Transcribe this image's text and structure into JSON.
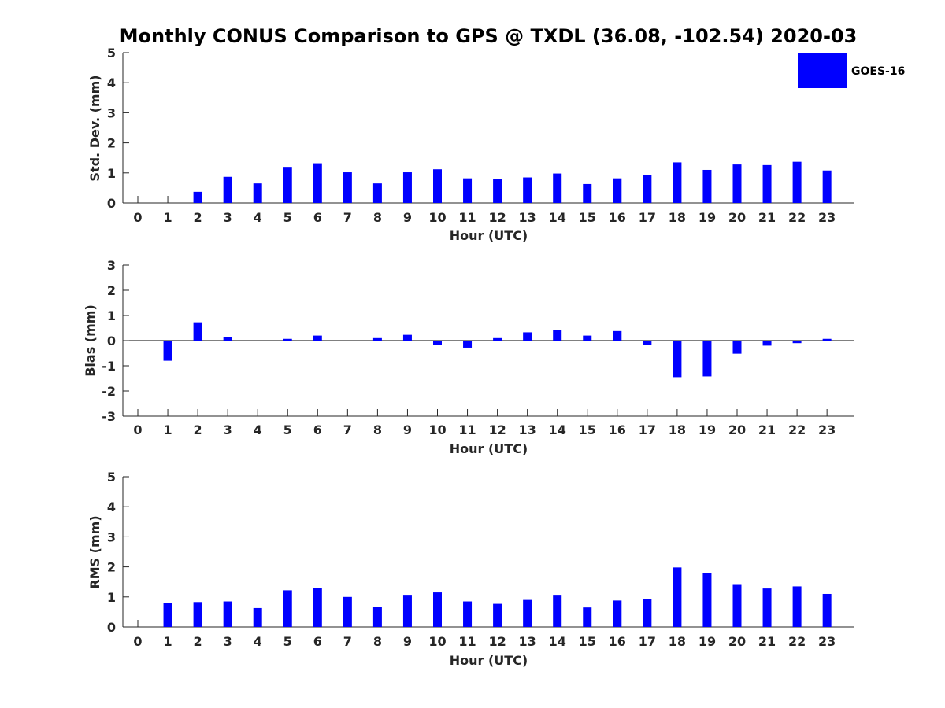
{
  "chart_data": {
    "title": "Monthly CONUS Comparison to GPS @ TXDL (36.08, -102.54) 2020-03",
    "series_color": "#0000ff",
    "legend": {
      "label": "GOES-16",
      "placement": "top-right"
    },
    "categories": [
      0,
      1,
      2,
      3,
      4,
      5,
      6,
      7,
      8,
      9,
      10,
      11,
      12,
      13,
      14,
      15,
      16,
      17,
      18,
      19,
      20,
      21,
      22,
      23
    ],
    "panels": [
      {
        "type": "bar",
        "ylabel": "Std. Dev. (mm)",
        "xlabel": "Hour (UTC)",
        "ylim": [
          0,
          5
        ],
        "yticks": [
          0,
          1,
          2,
          3,
          4,
          5
        ],
        "series": [
          {
            "name": "GOES-16",
            "values": [
              0,
              0,
              0.37,
              0.87,
              0.65,
              1.2,
              1.32,
              1.02,
              0.65,
              1.02,
              1.12,
              0.82,
              0.8,
              0.85,
              0.98,
              0.63,
              0.82,
              0.93,
              1.35,
              1.1,
              1.28,
              1.26,
              1.37,
              1.08
            ]
          }
        ]
      },
      {
        "type": "bar",
        "ylabel": "Bias (mm)",
        "xlabel": "Hour (UTC)",
        "ylim": [
          -3,
          3
        ],
        "yticks": [
          -3,
          -2,
          -1,
          0,
          1,
          2,
          3
        ],
        "series": [
          {
            "name": "GOES-16",
            "values": [
              0,
              -0.8,
              0.73,
              0.13,
              0,
              0.07,
              0.2,
              0,
              0.1,
              0.23,
              -0.17,
              -0.28,
              0.1,
              0.33,
              0.42,
              0.2,
              0.38,
              -0.17,
              -1.45,
              -1.42,
              -0.52,
              -0.2,
              -0.1,
              0.07
            ]
          }
        ]
      },
      {
        "type": "bar",
        "ylabel": "RMS (mm)",
        "xlabel": "Hour (UTC)",
        "ylim": [
          0,
          5
        ],
        "yticks": [
          0,
          1,
          2,
          3,
          4,
          5
        ],
        "series": [
          {
            "name": "GOES-16",
            "values": [
              0,
              0.8,
              0.83,
              0.85,
              0.63,
              1.22,
              1.3,
              1.0,
              0.67,
              1.07,
              1.15,
              0.85,
              0.77,
              0.9,
              1.07,
              0.65,
              0.88,
              0.93,
              1.98,
              1.8,
              1.4,
              1.28,
              1.35,
              1.1
            ]
          }
        ]
      }
    ]
  }
}
